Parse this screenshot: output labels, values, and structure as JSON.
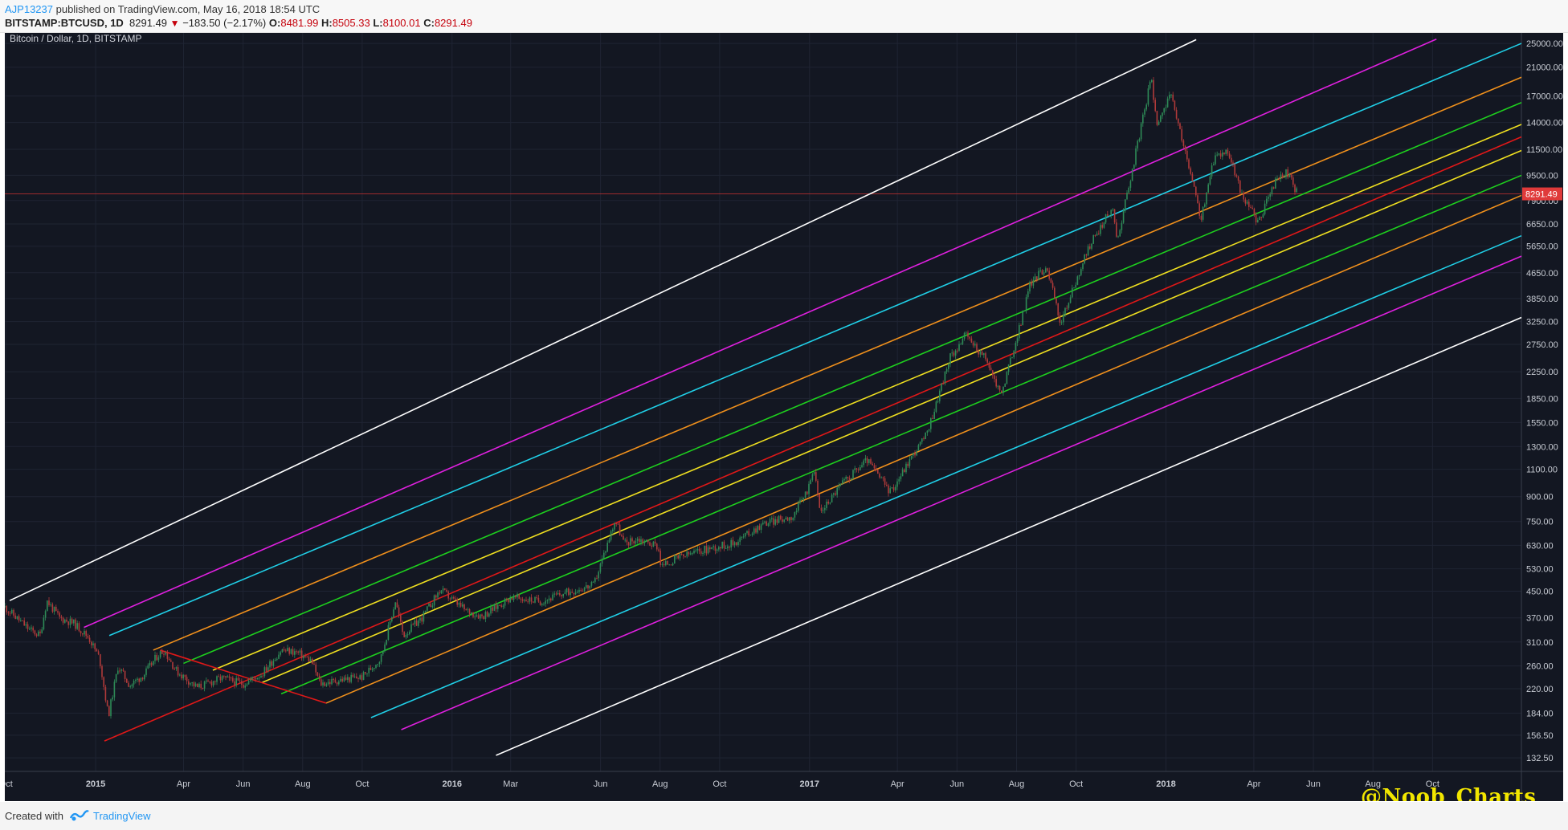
{
  "header": {
    "user": "AJP13237",
    "published": " published on TradingView.com, May 16, 2018 18:54 UTC",
    "symbol": "BITSTAMP:BTCUSD, 1D",
    "last": "8291.49",
    "change_arrow": "▼",
    "change": "−183.50 (−2.17%)",
    "o_label": "O:",
    "o_value": "8481.99",
    "h_label": "H:",
    "h_value": "8505.33",
    "l_label": "L:",
    "l_value": "8100.01",
    "c_label": "C:",
    "c_value": "8291.49"
  },
  "footer": {
    "created_with": "Created with",
    "brand": "TradingView"
  },
  "watermark": "@Noob_Charts",
  "colors": {
    "background": "#131722",
    "grid": "#1f2433",
    "up_candle": "#2e8b57",
    "down_candle": "#b03a3a",
    "price_line": "#c03030",
    "channel_white": "#ffffff",
    "channel_magenta": "#e020e0",
    "channel_cyan": "#20d0e8",
    "channel_orange": "#f0901c",
    "channel_green": "#1ed01e",
    "channel_yellow": "#f0e020",
    "channel_red": "#e01818"
  },
  "chart_data": {
    "type": "candlestick",
    "title": "Bitcoin / Dollar, 1D, BITSTAMP",
    "scale": "log",
    "last_price_label": "8291.49",
    "y_ticks": [
      "25000.00",
      "21000.00",
      "17000.00",
      "14000.00",
      "11500.00",
      "9500.00",
      "7900.00",
      "6650.00",
      "5650.00",
      "4650.00",
      "3850.00",
      "3250.00",
      "2750.00",
      "2250.00",
      "1850.00",
      "1550.00",
      "1300.00",
      "1100.00",
      "900.00",
      "750.00",
      "630.00",
      "530.00",
      "450.00",
      "370.00",
      "310.00",
      "260.00",
      "220.00",
      "184.00",
      "156.50",
      "132.50"
    ],
    "x_ticks": [
      {
        "label": "Oct",
        "date": "2014-10-01",
        "bold": false
      },
      {
        "label": "2015",
        "date": "2015-01-01",
        "bold": true
      },
      {
        "label": "Apr",
        "date": "2015-04-01",
        "bold": false
      },
      {
        "label": "Jun",
        "date": "2015-06-01",
        "bold": false
      },
      {
        "label": "Aug",
        "date": "2015-08-01",
        "bold": false
      },
      {
        "label": "Oct",
        "date": "2015-10-01",
        "bold": false
      },
      {
        "label": "2016",
        "date": "2016-01-01",
        "bold": true
      },
      {
        "label": "Mar",
        "date": "2016-03-01",
        "bold": false
      },
      {
        "label": "Jun",
        "date": "2016-06-01",
        "bold": false
      },
      {
        "label": "Aug",
        "date": "2016-08-01",
        "bold": false
      },
      {
        "label": "Oct",
        "date": "2016-10-01",
        "bold": false
      },
      {
        "label": "2017",
        "date": "2017-01-01",
        "bold": true
      },
      {
        "label": "Apr",
        "date": "2017-04-01",
        "bold": false
      },
      {
        "label": "Jun",
        "date": "2017-06-01",
        "bold": false
      },
      {
        "label": "Aug",
        "date": "2017-08-01",
        "bold": false
      },
      {
        "label": "Oct",
        "date": "2017-10-01",
        "bold": false
      },
      {
        "label": "2018",
        "date": "2018-01-01",
        "bold": true
      },
      {
        "label": "Apr",
        "date": "2018-04-01",
        "bold": false
      },
      {
        "label": "Jun",
        "date": "2018-06-01",
        "bold": false
      },
      {
        "label": "Aug",
        "date": "2018-08-01",
        "bold": false
      },
      {
        "label": "Oct",
        "date": "2018-10-01",
        "bold": false
      }
    ],
    "price_path": [
      [
        "2014-09-30",
        400
      ],
      [
        "2014-10-10",
        375
      ],
      [
        "2014-10-25",
        340
      ],
      [
        "2014-11-05",
        325
      ],
      [
        "2014-11-12",
        420
      ],
      [
        "2014-11-25",
        370
      ],
      [
        "2014-12-10",
        355
      ],
      [
        "2014-12-25",
        320
      ],
      [
        "2015-01-05",
        275
      ],
      [
        "2015-01-14",
        180
      ],
      [
        "2015-01-24",
        260
      ],
      [
        "2015-02-05",
        225
      ],
      [
        "2015-02-20",
        245
      ],
      [
        "2015-03-05",
        280
      ],
      [
        "2015-03-12",
        292
      ],
      [
        "2015-03-25",
        250
      ],
      [
        "2015-04-15",
        222
      ],
      [
        "2015-05-10",
        238
      ],
      [
        "2015-06-01",
        228
      ],
      [
        "2015-06-20",
        245
      ],
      [
        "2015-07-10",
        292
      ],
      [
        "2015-07-25",
        288
      ],
      [
        "2015-08-10",
        270
      ],
      [
        "2015-08-19",
        228
      ],
      [
        "2015-09-10",
        235
      ],
      [
        "2015-10-01",
        240
      ],
      [
        "2015-10-20",
        275
      ],
      [
        "2015-11-04",
        420
      ],
      [
        "2015-11-12",
        325
      ],
      [
        "2015-12-01",
        370
      ],
      [
        "2015-12-20",
        455
      ],
      [
        "2016-01-15",
        390
      ],
      [
        "2016-02-01",
        375
      ],
      [
        "2016-03-01",
        430
      ],
      [
        "2016-04-01",
        418
      ],
      [
        "2016-05-01",
        450
      ],
      [
        "2016-05-25",
        470
      ],
      [
        "2016-06-16",
        760
      ],
      [
        "2016-06-25",
        640
      ],
      [
        "2016-07-10",
        660
      ],
      [
        "2016-07-30",
        625
      ],
      [
        "2016-08-02",
        540
      ],
      [
        "2016-08-20",
        575
      ],
      [
        "2016-09-15",
        610
      ],
      [
        "2016-10-15",
        640
      ],
      [
        "2016-11-15",
        740
      ],
      [
        "2016-12-15",
        780
      ],
      [
        "2016-12-31",
        960
      ],
      [
        "2017-01-05",
        1130
      ],
      [
        "2017-01-12",
        800
      ],
      [
        "2017-02-01",
        975
      ],
      [
        "2017-03-01",
        1180
      ],
      [
        "2017-03-25",
        930
      ],
      [
        "2017-04-15",
        1200
      ],
      [
        "2017-05-01",
        1420
      ],
      [
        "2017-05-25",
        2500
      ],
      [
        "2017-06-10",
        2950
      ],
      [
        "2017-07-01",
        2450
      ],
      [
        "2017-07-16",
        1900
      ],
      [
        "2017-08-01",
        2850
      ],
      [
        "2017-08-15",
        4300
      ],
      [
        "2017-09-01",
        4900
      ],
      [
        "2017-09-15",
        3200
      ],
      [
        "2017-09-30",
        4300
      ],
      [
        "2017-10-15",
        5700
      ],
      [
        "2017-11-07",
        7500
      ],
      [
        "2017-11-12",
        5900
      ],
      [
        "2017-11-30",
        10800
      ],
      [
        "2017-12-17",
        19500
      ],
      [
        "2017-12-22",
        14000
      ],
      [
        "2018-01-06",
        17000
      ],
      [
        "2018-01-20",
        11500
      ],
      [
        "2018-02-06",
        6900
      ],
      [
        "2018-02-20",
        11000
      ],
      [
        "2018-03-05",
        11400
      ],
      [
        "2018-03-20",
        8200
      ],
      [
        "2018-04-06",
        6700
      ],
      [
        "2018-04-15",
        8000
      ],
      [
        "2018-04-25",
        9300
      ],
      [
        "2018-05-05",
        9700
      ],
      [
        "2018-05-16",
        8291.49
      ]
    ],
    "channels": [
      {
        "color": "white",
        "points": [
          [
            "2014-10-05",
            420
          ],
          [
            "2018-02-01",
            25700
          ]
        ]
      },
      {
        "color": "magenta",
        "points": [
          [
            "2014-12-20",
            345
          ],
          [
            "2018-10-05",
            25800
          ]
        ]
      },
      {
        "color": "cyan",
        "points": [
          [
            "2015-01-15",
            325
          ],
          [
            "2018-12-31",
            25000
          ]
        ]
      },
      {
        "color": "orange",
        "points": [
          [
            "2015-03-01",
            292
          ],
          [
            "2018-12-31",
            19500
          ]
        ]
      },
      {
        "color": "green",
        "points": [
          [
            "2015-04-01",
            265
          ],
          [
            "2018-12-31",
            16200
          ]
        ]
      },
      {
        "color": "yellow",
        "points": [
          [
            "2015-05-01",
            252
          ],
          [
            "2018-12-31",
            13800
          ]
        ]
      },
      {
        "color": "red",
        "points": [
          [
            "2015-01-10",
            150
          ],
          [
            "2018-12-31",
            12600
          ]
        ]
      },
      {
        "color": "yellow",
        "points": [
          [
            "2015-06-20",
            230
          ],
          [
            "2018-12-31",
            11400
          ]
        ]
      },
      {
        "color": "green",
        "points": [
          [
            "2015-07-10",
            212
          ],
          [
            "2018-12-31",
            9500
          ]
        ]
      },
      {
        "color": "orange",
        "points": [
          [
            "2015-08-25",
            198
          ],
          [
            "2018-12-31",
            8200
          ]
        ]
      },
      {
        "color": "cyan",
        "points": [
          [
            "2015-10-10",
            178
          ],
          [
            "2018-12-31",
            6100
          ]
        ]
      },
      {
        "color": "magenta",
        "points": [
          [
            "2015-11-10",
            163
          ],
          [
            "2018-12-31",
            5250
          ]
        ]
      },
      {
        "color": "white",
        "points": [
          [
            "2016-02-15",
            135
          ],
          [
            "2018-12-31",
            3350
          ]
        ]
      },
      {
        "color": "red",
        "points": [
          [
            "2015-03-08",
            292
          ],
          [
            "2015-08-25",
            198
          ]
        ]
      }
    ]
  }
}
